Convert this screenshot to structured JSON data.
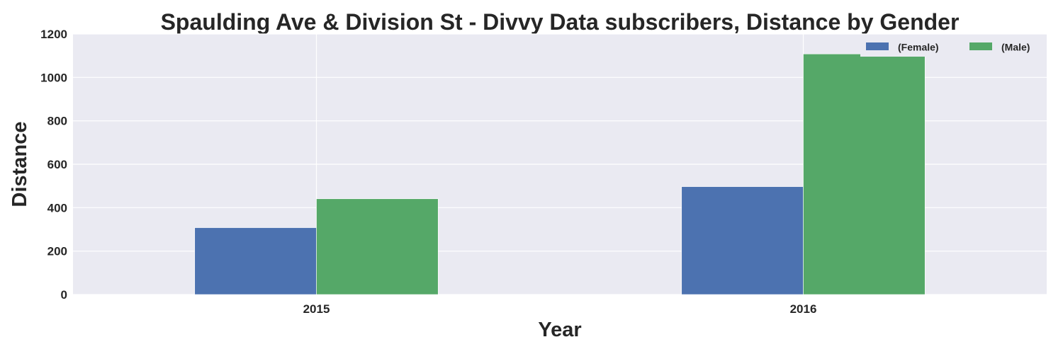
{
  "chart_data": {
    "type": "bar",
    "title": "Spaulding Ave & Division St - Divvy Data subscribers, Distance by Gender",
    "xlabel": "Year",
    "ylabel": "Distance",
    "categories": [
      "2015",
      "2016"
    ],
    "series": [
      {
        "name": "(Female)",
        "values": [
          308,
          497
        ],
        "color": "#4C72B0"
      },
      {
        "name": "(Male)",
        "values": [
          441,
          1108
        ],
        "color": "#55A868"
      }
    ],
    "ylim": [
      0,
      1200
    ],
    "yticks": [
      "0",
      "200",
      "400",
      "600",
      "800",
      "1000",
      "1200"
    ],
    "grid": true,
    "legend_position": "top-right",
    "colors": {
      "background": "#EAEAF2",
      "grid": "#FFFFFF",
      "text": "#262626"
    }
  }
}
